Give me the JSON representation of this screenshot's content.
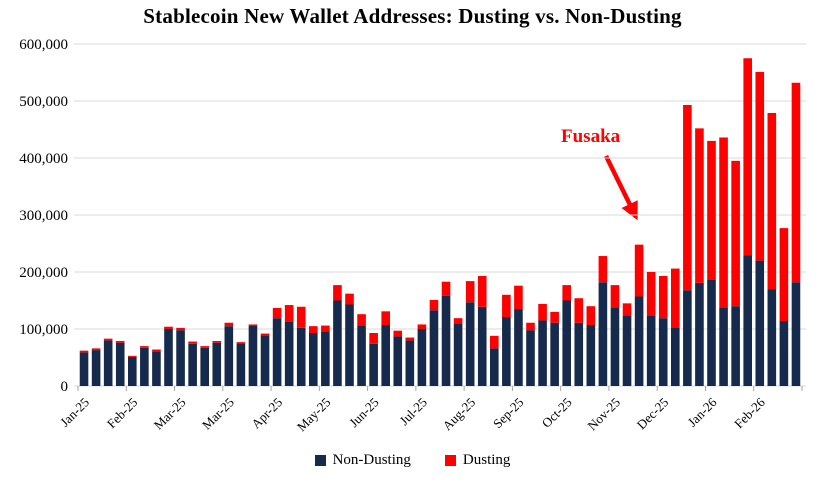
{
  "chart_data": {
    "type": "bar",
    "stacked": true,
    "title": "Stablecoin New Wallet Addresses: Dusting vs. Non-Dusting",
    "grid": "horizontal",
    "legend_position": "bottom",
    "ylim": [
      0,
      600000
    ],
    "y_tick_labels": [
      "0",
      "100,000",
      "200,000",
      "300,000",
      "400,000",
      "500,000",
      "600,000"
    ],
    "x_tick_labels": [
      "Jan-25",
      "Feb-25",
      "Mar-25",
      "Mar-25",
      "Apr-25",
      "May-25",
      "Jun-25",
      "Jul-25",
      "Aug-25",
      "Sep-25",
      "Oct-25",
      "Nov-25",
      "Dec-25",
      "Jan-26",
      "Feb-26"
    ],
    "bars_per_label": 4,
    "n_bars": 60,
    "annotation": {
      "text": "Fusaka",
      "color": "#FF0000"
    },
    "colors": {
      "non_dusting": "#152A4D",
      "dusting": "#FF0000",
      "gridline": "#D9D9D9",
      "tick": "#A6A6A6"
    },
    "series": [
      {
        "name": "Non-Dusting",
        "color": "#152A4D",
        "values": [
          59000,
          63000,
          80000,
          76000,
          51000,
          67000,
          61000,
          100000,
          98000,
          74000,
          67000,
          76000,
          105000,
          75000,
          106000,
          89000,
          119000,
          113000,
          102000,
          93000,
          96000,
          150000,
          143000,
          106000,
          74000,
          107000,
          87000,
          80000,
          100000,
          133000,
          158000,
          110000,
          147000,
          139000,
          66000,
          121000,
          135000,
          98000,
          115000,
          111000,
          150000,
          111000,
          107000,
          182000,
          138000,
          124000,
          157000,
          124000,
          119000,
          103000,
          168000,
          181000,
          186000,
          138000,
          140000,
          229000,
          220000,
          170000,
          114000,
          182000
        ]
      },
      {
        "name": "Dusting",
        "color": "#FF0000",
        "values": [
          3000,
          3000,
          3000,
          3000,
          2000,
          3000,
          3000,
          4000,
          4000,
          4000,
          3000,
          3000,
          6000,
          2000,
          2000,
          3000,
          18000,
          29000,
          37000,
          12000,
          10000,
          27000,
          19000,
          20000,
          19000,
          24000,
          10000,
          5000,
          8000,
          18000,
          25000,
          9000,
          37000,
          54000,
          22000,
          39000,
          41000,
          13000,
          29000,
          19000,
          27000,
          43000,
          33000,
          46000,
          39000,
          21000,
          91000,
          76000,
          74000,
          103000,
          325000,
          271000,
          244000,
          298000,
          255000,
          346000,
          331000,
          309000,
          163000,
          350000
        ]
      }
    ]
  }
}
